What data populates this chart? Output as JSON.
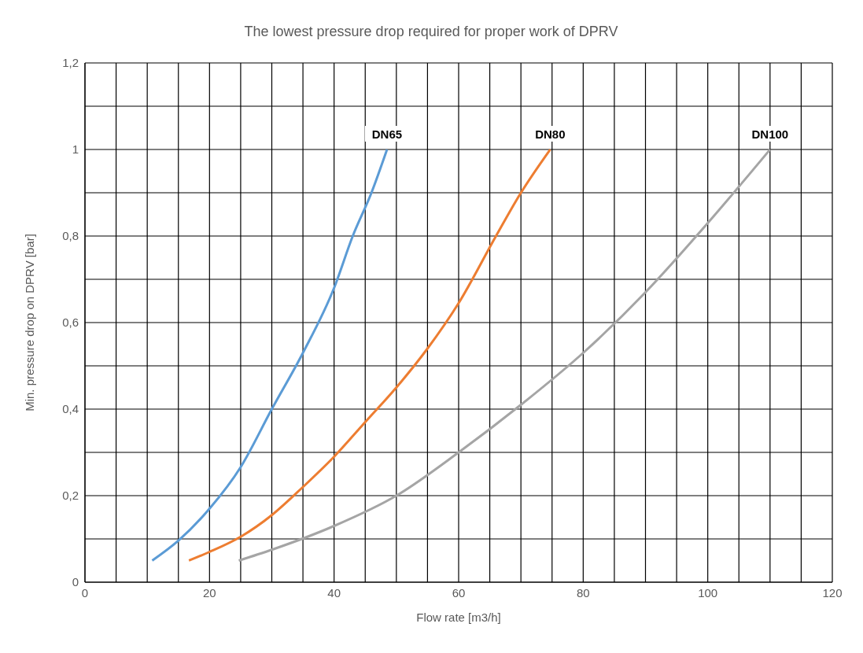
{
  "chart_data": {
    "type": "line",
    "title": "The lowest pressure drop required for proper work of DPRV",
    "xlabel": "Flow rate [m3/h]",
    "ylabel": "Min. pressure drop on DPRV [bar]",
    "series": [
      {
        "name": "DN65",
        "color": "#5b9bd5",
        "x": [
          10.8,
          15,
          20,
          25,
          30,
          35,
          40,
          43,
          46,
          48.5
        ],
        "values": [
          0.05,
          0.096,
          0.17,
          0.266,
          0.4,
          0.53,
          0.68,
          0.8,
          0.9,
          1.0
        ]
      },
      {
        "name": "DN80",
        "color": "#ed7d31",
        "x": [
          16.7,
          20,
          25,
          30,
          35,
          40,
          45,
          50,
          55,
          60,
          66,
          70,
          74.7
        ],
        "values": [
          0.05,
          0.07,
          0.105,
          0.155,
          0.22,
          0.29,
          0.37,
          0.45,
          0.54,
          0.645,
          0.8,
          0.9,
          1.0
        ]
      },
      {
        "name": "DN100",
        "color": "#a5a5a5",
        "x": [
          24.7,
          30,
          40,
          50,
          60,
          70,
          80,
          90,
          100,
          110
        ],
        "values": [
          0.05,
          0.075,
          0.13,
          0.2,
          0.3,
          0.41,
          0.53,
          0.67,
          0.83,
          1.0
        ]
      }
    ],
    "xlim": [
      0,
      120
    ],
    "xticks": [
      0,
      {
        "value": 5,
        "label": null
      },
      {
        "value": 10,
        "label": null
      },
      {
        "value": 15,
        "label": null
      },
      20,
      {
        "value": 25,
        "label": null
      },
      {
        "value": 30,
        "label": null
      },
      {
        "value": 35,
        "label": null
      },
      40,
      {
        "value": 45,
        "label": null
      },
      {
        "value": 50,
        "label": null
      },
      {
        "value": 55,
        "label": null
      },
      60,
      {
        "value": 65,
        "label": null
      },
      {
        "value": 70,
        "label": null
      },
      {
        "value": 75,
        "label": null
      },
      80,
      {
        "value": 85,
        "label": null
      },
      {
        "value": 90,
        "label": null
      },
      {
        "value": 95,
        "label": null
      },
      100,
      {
        "value": 105,
        "label": null
      },
      {
        "value": 110,
        "label": null
      },
      {
        "value": 115,
        "label": null
      },
      120
    ],
    "ylim": [
      0,
      1.2
    ],
    "yticks": [
      0,
      {
        "value": 0.1,
        "label": null
      },
      {
        "value": 0.2,
        "label": "0,2"
      },
      {
        "value": 0.3,
        "label": null
      },
      {
        "value": 0.4,
        "label": "0,4"
      },
      {
        "value": 0.5,
        "label": null
      },
      {
        "value": 0.6,
        "label": "0,6"
      },
      {
        "value": 0.7,
        "label": null
      },
      {
        "value": 0.8,
        "label": "0,8"
      },
      {
        "value": 0.9,
        "label": null
      },
      1,
      {
        "value": 1.1,
        "label": null
      },
      {
        "value": 1.2,
        "label": "1,2"
      }
    ],
    "grid": true,
    "legend": false,
    "marker": "none",
    "line_style": "solid"
  }
}
